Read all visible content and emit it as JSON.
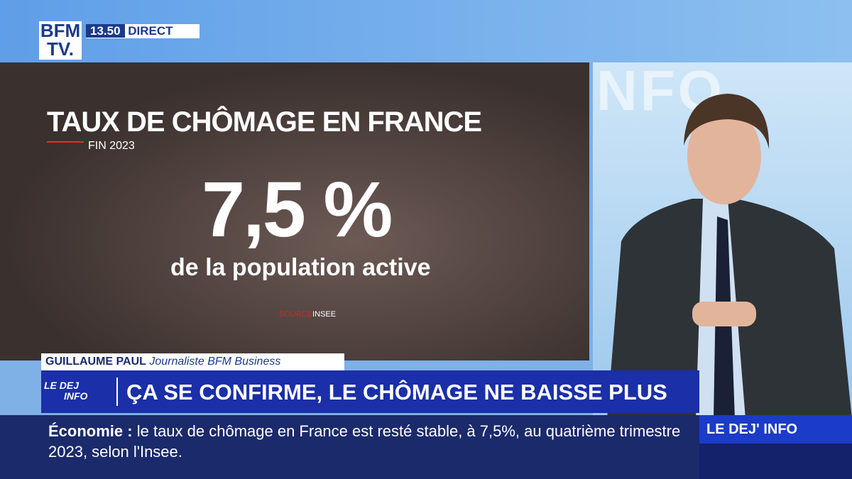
{
  "header": {
    "logo_top": "BFM",
    "logo_bottom": "TV.",
    "time": "13.50",
    "live": "DIRECT"
  },
  "graphic": {
    "title": "TAUX DE CHÔMAGE EN FRANCE",
    "subtitle": "FIN 2023",
    "value": "7,5 %",
    "caption": "de la population active",
    "source_label": "SOURCE",
    "source": "INSEE"
  },
  "lower_third": {
    "name": "GUILLAUME PAUL",
    "role": "Journaliste BFM Business",
    "show_logo_top": "LE DEJ",
    "show_logo_bottom": "INFO",
    "headline": "ÇA SE CONFIRME, LE CHÔMAGE NE BAISSE PLUS"
  },
  "ticker": {
    "category": "Économie",
    "separator": ":",
    "text": "le taux de chômage en France est resté stable, à 7,5%, au quatrième trimestre 2023, selon l'Insee.",
    "show": "LE DEJ' INFO"
  }
}
